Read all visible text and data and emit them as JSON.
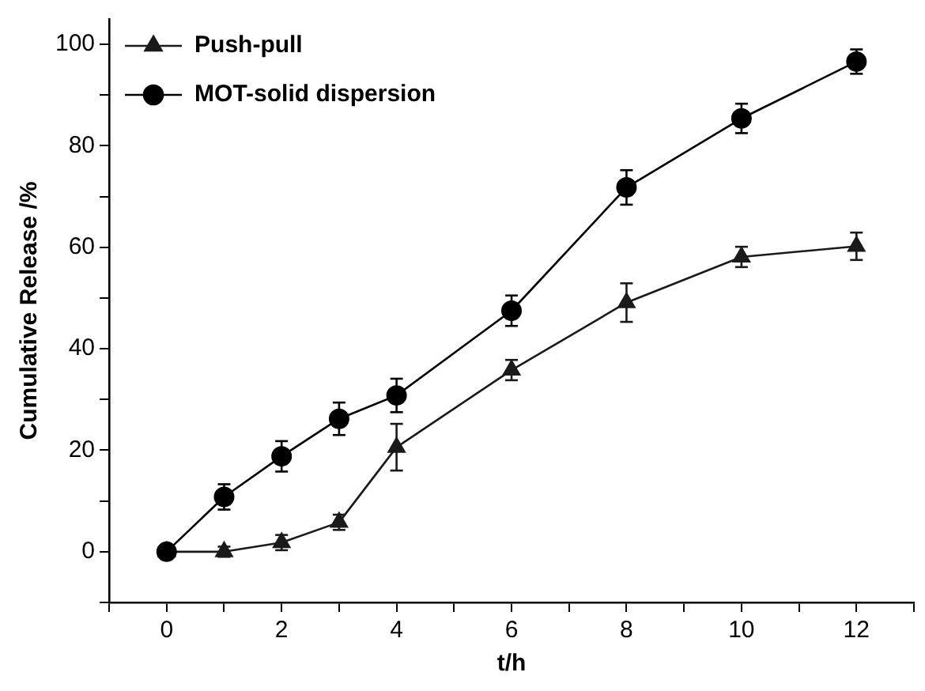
{
  "chart_data": {
    "type": "line",
    "xlabel": "t/h",
    "ylabel": "Cumulative Release /%",
    "x": [
      0,
      1,
      2,
      3,
      4,
      6,
      8,
      10,
      12
    ],
    "series": [
      {
        "name": "Push-pull",
        "color": "#1a1a1a",
        "marker": "triangle",
        "values": [
          0,
          0,
          1.8,
          5.8,
          20.6,
          35.8,
          49.1,
          58.1,
          60.2
        ],
        "errors": [
          1,
          1,
          1.5,
          1.5,
          4.6,
          2,
          3.8,
          2,
          2.7
        ]
      },
      {
        "name": "MOT-solid dispersion",
        "color": "#000000",
        "marker": "circle",
        "values": [
          0,
          10.8,
          18.8,
          26.2,
          30.8,
          47.5,
          71.8,
          85.4,
          96.6
        ],
        "errors": [
          1,
          2.5,
          3,
          3.2,
          3.3,
          3,
          3.4,
          2.9,
          2.4
        ]
      }
    ],
    "xlim": [
      -1,
      13
    ],
    "xticks": [
      {
        "value": -1,
        "label": null
      },
      0,
      {
        "value": 1,
        "label": null
      },
      2,
      {
        "value": 3,
        "label": null
      },
      4,
      {
        "value": 5,
        "label": null
      },
      6,
      {
        "value": 7,
        "label": null
      },
      8,
      {
        "value": 9,
        "label": null
      },
      10,
      {
        "value": 11,
        "label": null
      },
      12,
      {
        "value": 13,
        "label": null
      }
    ],
    "ylim": [
      -10,
      105
    ],
    "yticks": [
      {
        "value": -10,
        "label": null
      },
      0,
      {
        "value": 10,
        "label": null
      },
      20,
      {
        "value": 30,
        "label": null
      },
      40,
      {
        "value": 50,
        "label": null
      },
      60,
      {
        "value": 70,
        "label": null
      },
      80,
      {
        "value": 90,
        "label": null
      },
      100
    ],
    "grid": false,
    "legend": "top left",
    "line_style": "solid"
  }
}
